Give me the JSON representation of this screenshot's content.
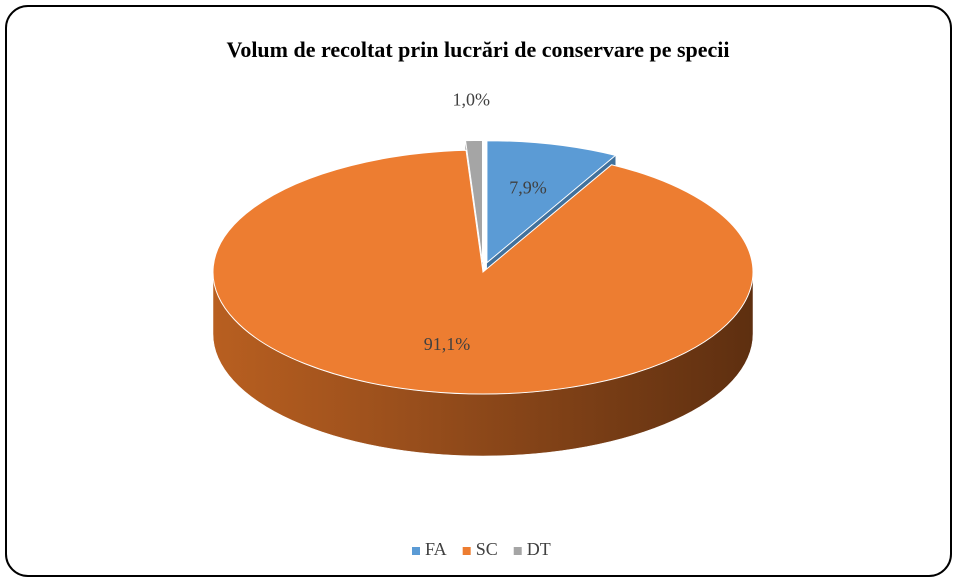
{
  "chart_data": {
    "type": "pie3d",
    "title": "Volum de recoltat prin lucrări de conservare pe specii",
    "categories": [
      "FA",
      "SC",
      "DT"
    ],
    "values": [
      7.9,
      91.1,
      1.0
    ],
    "value_labels": [
      "7,9%",
      "91,1%",
      "1,0%"
    ],
    "colors": [
      "#5b9bd5",
      "#ed7d31",
      "#a5a5a5"
    ],
    "legend": "bottom"
  }
}
